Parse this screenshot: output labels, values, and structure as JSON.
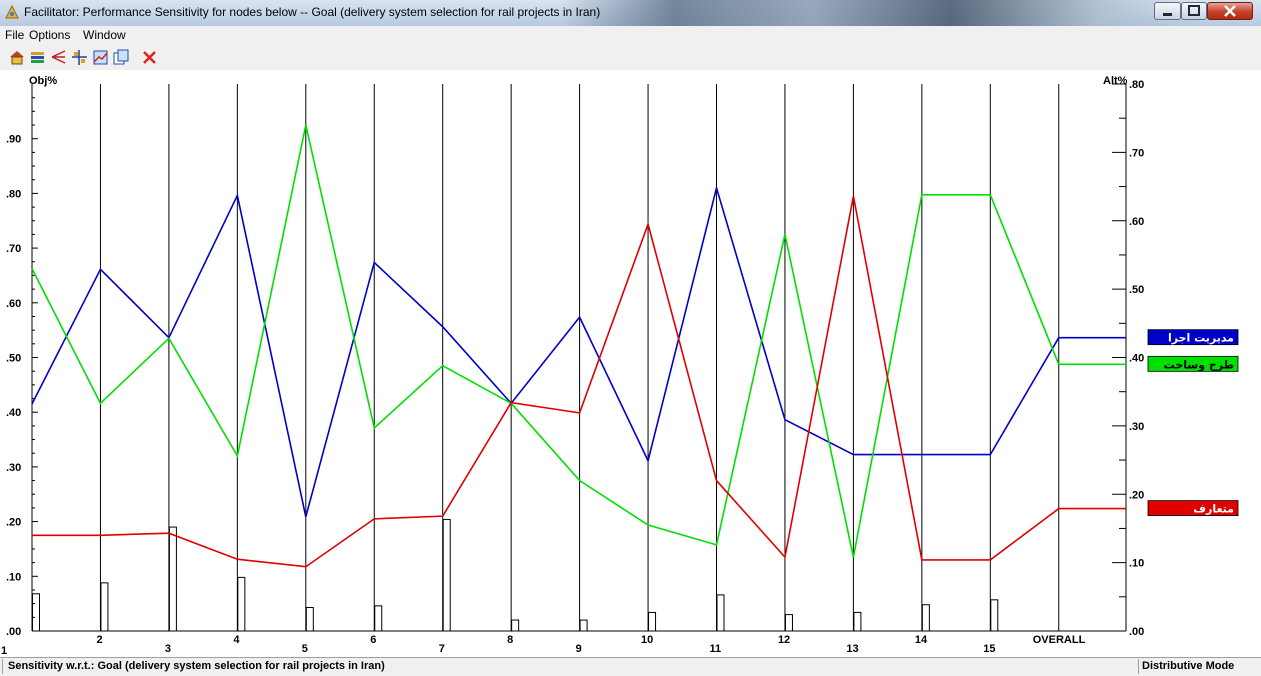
{
  "window": {
    "title": "Facilitator: Performance Sensitivity for nodes below -- Goal (delivery system selection for rail projects in Iran)"
  },
  "menu": {
    "file": "File",
    "options": "Options",
    "window": "Window"
  },
  "toolbar": {
    "icons": [
      "graph-type-icon",
      "sort-icon",
      "zoom-icon",
      "perspective-icon",
      "gradient-icon",
      "copy-icon",
      "close-icon"
    ]
  },
  "status": {
    "left": "Sensitivity w.r.t.: Goal (delivery system selection for rail projects in Iran)",
    "right": "Distributive Mode"
  },
  "chart_data": {
    "type": "line",
    "left_axis_label": "Obj%",
    "right_axis_label": "Alt%",
    "left_ylim": [
      0,
      1.0
    ],
    "right_ylim": [
      0,
      0.8
    ],
    "left_ticks": [
      ".00",
      ".10",
      ".20",
      ".30",
      ".40",
      ".50",
      ".60",
      ".70",
      ".80",
      ".90"
    ],
    "right_ticks": [
      ".00",
      ".10",
      ".20",
      ".30",
      ".40",
      ".50",
      ".60",
      ".70",
      ".80"
    ],
    "categories": [
      "1",
      "2",
      "3",
      "4",
      "5",
      "6",
      "7",
      "8",
      "9",
      "10",
      "11",
      "12",
      "13",
      "14",
      "15",
      "OVERALL"
    ],
    "objective_weights": [
      0.068,
      0.088,
      0.19,
      0.098,
      0.043,
      0.046,
      0.204,
      0.02,
      0.02,
      0.034,
      0.066,
      0.03,
      0.034,
      0.048,
      0.057
    ],
    "series": [
      {
        "name": "مدیریت اجرا",
        "color": "#0000c8",
        "values": [
          0.332,
          0.529,
          0.429,
          0.637,
          0.167,
          0.539,
          0.445,
          0.333,
          0.459,
          0.249,
          0.648,
          0.309,
          0.258,
          0.258,
          0.258,
          0.429
        ]
      },
      {
        "name": "طرح وساخت",
        "color": "#00e000",
        "values": [
          0.53,
          0.333,
          0.428,
          0.256,
          0.74,
          0.297,
          0.388,
          0.333,
          0.22,
          0.155,
          0.126,
          0.58,
          0.108,
          0.638,
          0.638,
          0.39
        ]
      },
      {
        "name": "متعارف",
        "color": "#e00000",
        "values": [
          0.14,
          0.14,
          0.143,
          0.105,
          0.094,
          0.164,
          0.168,
          0.334,
          0.319,
          0.595,
          0.22,
          0.108,
          0.636,
          0.104,
          0.104,
          0.179
        ]
      }
    ]
  }
}
